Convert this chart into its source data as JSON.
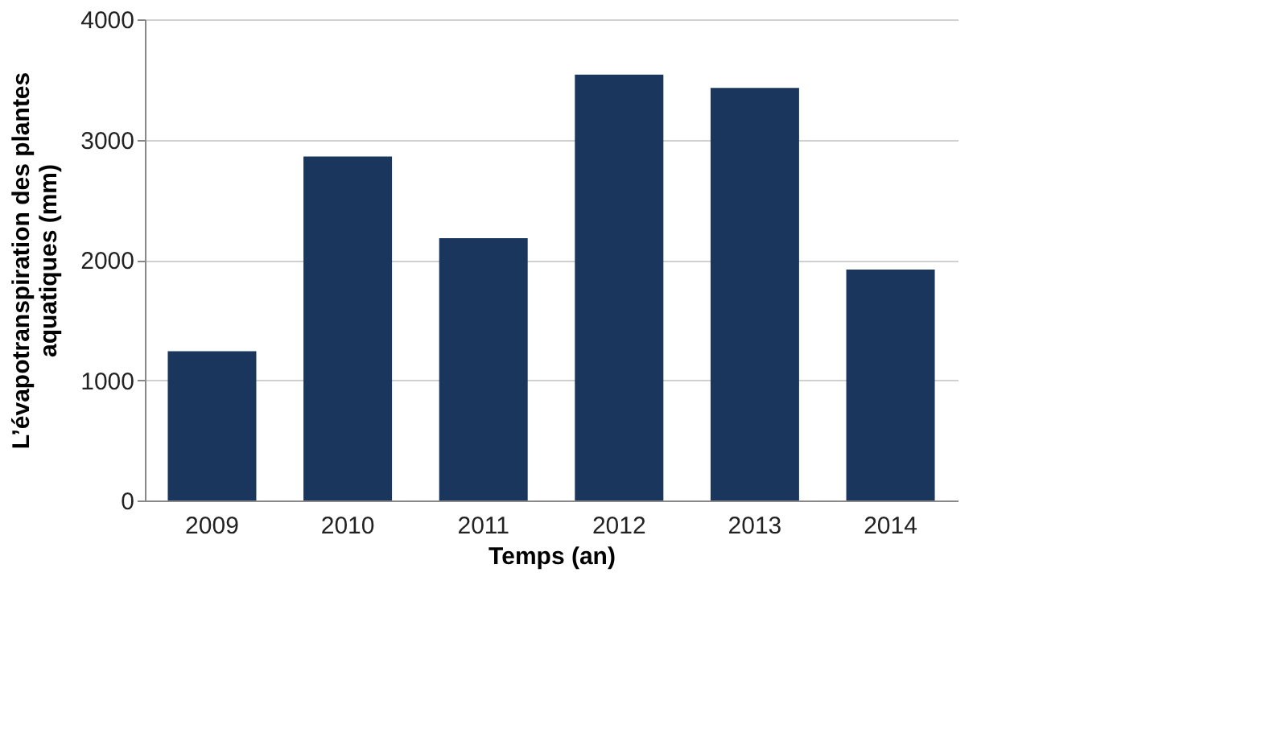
{
  "chart_data": {
    "type": "bar",
    "xlabel": "Temps (an)",
    "ylabel": "L’évapotranspiration des plantes aquatiques (mm)",
    "categories": [
      "2009",
      "2010",
      "2011",
      "2012",
      "2013",
      "2014"
    ],
    "values": [
      1240,
      2860,
      2180,
      3540,
      3430,
      1920
    ],
    "color": "#1b365d",
    "ylim": [
      0,
      4000
    ],
    "yticks": [
      0,
      1000,
      2000,
      3000,
      4000
    ],
    "grid": "y"
  }
}
